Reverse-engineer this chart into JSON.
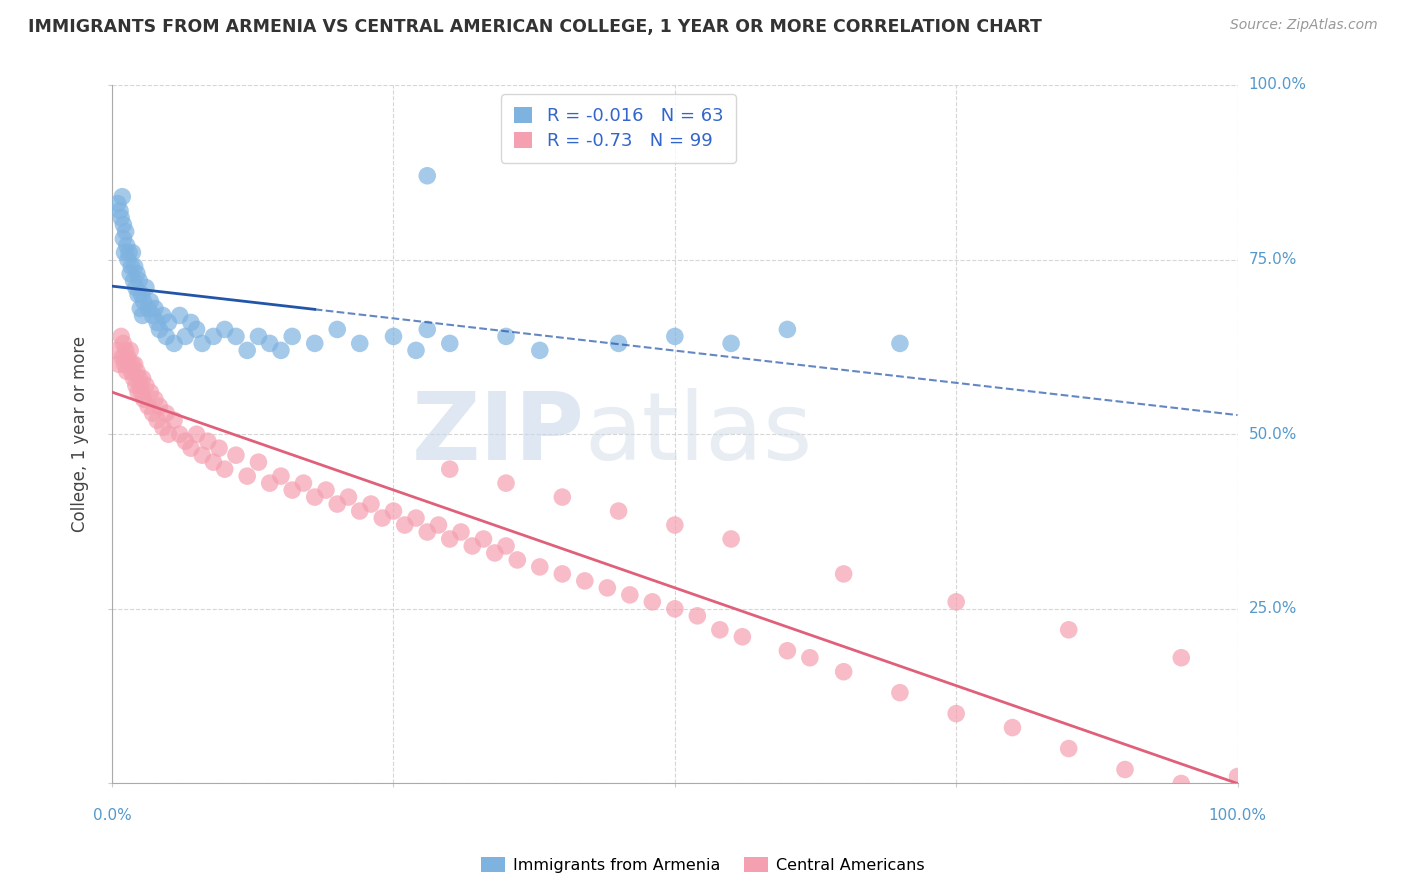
{
  "title": "IMMIGRANTS FROM ARMENIA VS CENTRAL AMERICAN COLLEGE, 1 YEAR OR MORE CORRELATION CHART",
  "source_text": "Source: ZipAtlas.com",
  "ylabel": "College, 1 year or more",
  "blue_label": "Immigrants from Armenia",
  "pink_label": "Central Americans",
  "blue_R": -0.016,
  "blue_N": 63,
  "pink_R": -0.73,
  "pink_N": 99,
  "xlim": [
    0,
    1
  ],
  "ylim": [
    0,
    1
  ],
  "blue_color": "#7EB3E0",
  "pink_color": "#F4A0B0",
  "blue_line_color": "#2255AA",
  "pink_line_color": "#E0607A",
  "watermark_zip": "ZIP",
  "watermark_atlas": "atlas",
  "background_color": "#FFFFFF",
  "grid_color": "#CCCCCC",
  "title_color": "#333333",
  "axis_tick_color": "#5599CC",
  "legend_text_color": "#3366CC",
  "blue_scatter_x": [
    0.005,
    0.007,
    0.008,
    0.009,
    0.01,
    0.01,
    0.011,
    0.012,
    0.013,
    0.014,
    0.015,
    0.016,
    0.017,
    0.018,
    0.019,
    0.02,
    0.021,
    0.022,
    0.023,
    0.024,
    0.025,
    0.026,
    0.027,
    0.028,
    0.03,
    0.032,
    0.034,
    0.036,
    0.038,
    0.04,
    0.042,
    0.045,
    0.048,
    0.05,
    0.055,
    0.06,
    0.065,
    0.07,
    0.075,
    0.08,
    0.09,
    0.1,
    0.11,
    0.12,
    0.13,
    0.14,
    0.15,
    0.16,
    0.18,
    0.2,
    0.22,
    0.25,
    0.27,
    0.28,
    0.3,
    0.35,
    0.38,
    0.45,
    0.5,
    0.55,
    0.6,
    0.7,
    0.28
  ],
  "blue_scatter_y": [
    0.83,
    0.82,
    0.81,
    0.84,
    0.78,
    0.8,
    0.76,
    0.79,
    0.77,
    0.75,
    0.76,
    0.73,
    0.74,
    0.76,
    0.72,
    0.74,
    0.71,
    0.73,
    0.7,
    0.72,
    0.68,
    0.7,
    0.67,
    0.69,
    0.71,
    0.68,
    0.69,
    0.67,
    0.68,
    0.66,
    0.65,
    0.67,
    0.64,
    0.66,
    0.63,
    0.67,
    0.64,
    0.66,
    0.65,
    0.63,
    0.64,
    0.65,
    0.64,
    0.62,
    0.64,
    0.63,
    0.62,
    0.64,
    0.63,
    0.65,
    0.63,
    0.64,
    0.62,
    0.65,
    0.63,
    0.64,
    0.62,
    0.63,
    0.64,
    0.63,
    0.65,
    0.63,
    0.87
  ],
  "pink_scatter_x": [
    0.004,
    0.006,
    0.008,
    0.009,
    0.01,
    0.011,
    0.012,
    0.013,
    0.014,
    0.015,
    0.016,
    0.017,
    0.018,
    0.019,
    0.02,
    0.021,
    0.022,
    0.023,
    0.024,
    0.025,
    0.026,
    0.027,
    0.028,
    0.03,
    0.032,
    0.034,
    0.036,
    0.038,
    0.04,
    0.042,
    0.045,
    0.048,
    0.05,
    0.055,
    0.06,
    0.065,
    0.07,
    0.075,
    0.08,
    0.085,
    0.09,
    0.095,
    0.1,
    0.11,
    0.12,
    0.13,
    0.14,
    0.15,
    0.16,
    0.17,
    0.18,
    0.19,
    0.2,
    0.21,
    0.22,
    0.23,
    0.24,
    0.25,
    0.26,
    0.27,
    0.28,
    0.29,
    0.3,
    0.31,
    0.32,
    0.33,
    0.34,
    0.35,
    0.36,
    0.38,
    0.4,
    0.42,
    0.44,
    0.46,
    0.48,
    0.5,
    0.52,
    0.54,
    0.56,
    0.6,
    0.62,
    0.65,
    0.7,
    0.75,
    0.8,
    0.85,
    0.9,
    0.95,
    0.3,
    0.35,
    0.4,
    0.45,
    0.5,
    0.55,
    0.65,
    0.75,
    0.85,
    0.95,
    1.0
  ],
  "pink_scatter_y": [
    0.62,
    0.6,
    0.64,
    0.61,
    0.63,
    0.6,
    0.62,
    0.59,
    0.61,
    0.6,
    0.62,
    0.59,
    0.6,
    0.58,
    0.6,
    0.57,
    0.59,
    0.56,
    0.58,
    0.57,
    0.56,
    0.58,
    0.55,
    0.57,
    0.54,
    0.56,
    0.53,
    0.55,
    0.52,
    0.54,
    0.51,
    0.53,
    0.5,
    0.52,
    0.5,
    0.49,
    0.48,
    0.5,
    0.47,
    0.49,
    0.46,
    0.48,
    0.45,
    0.47,
    0.44,
    0.46,
    0.43,
    0.44,
    0.42,
    0.43,
    0.41,
    0.42,
    0.4,
    0.41,
    0.39,
    0.4,
    0.38,
    0.39,
    0.37,
    0.38,
    0.36,
    0.37,
    0.35,
    0.36,
    0.34,
    0.35,
    0.33,
    0.34,
    0.32,
    0.31,
    0.3,
    0.29,
    0.28,
    0.27,
    0.26,
    0.25,
    0.24,
    0.22,
    0.21,
    0.19,
    0.18,
    0.16,
    0.13,
    0.1,
    0.08,
    0.05,
    0.02,
    0.0,
    0.45,
    0.43,
    0.41,
    0.39,
    0.37,
    0.35,
    0.3,
    0.26,
    0.22,
    0.18,
    0.01
  ]
}
